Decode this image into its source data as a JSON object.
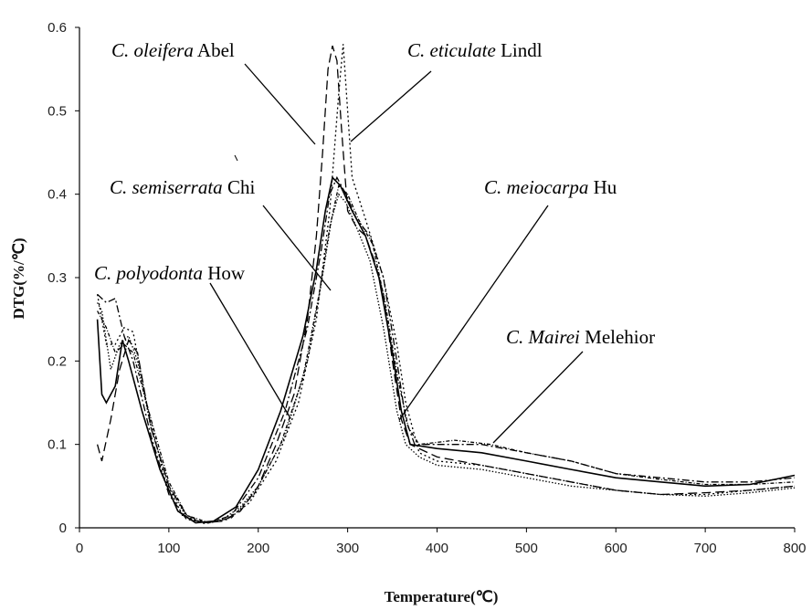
{
  "chart_data": {
    "type": "line",
    "title": "",
    "xlabel": "Temperature(℃)",
    "ylabel": "DTG(%/℃)",
    "xlim": [
      0,
      800
    ],
    "ylim": [
      0,
      0.6
    ],
    "x_ticks": [
      "0",
      "100",
      "200",
      "300",
      "400",
      "500",
      "600",
      "700",
      "800"
    ],
    "y_ticks": [
      "0",
      "0.1",
      "0.2",
      "0.3",
      "0.4",
      "0.5",
      "0.6"
    ],
    "grid": false,
    "legend": "none",
    "series": [
      {
        "name": "C. oleifera Abel",
        "style": "dashed",
        "points": [
          [
            20,
            0.1
          ],
          [
            25,
            0.08
          ],
          [
            35,
            0.13
          ],
          [
            45,
            0.19
          ],
          [
            55,
            0.225
          ],
          [
            65,
            0.21
          ],
          [
            80,
            0.12
          ],
          [
            100,
            0.05
          ],
          [
            120,
            0.015
          ],
          [
            140,
            0.006
          ],
          [
            160,
            0.008
          ],
          [
            180,
            0.02
          ],
          [
            200,
            0.05
          ],
          [
            220,
            0.1
          ],
          [
            240,
            0.16
          ],
          [
            255,
            0.25
          ],
          [
            265,
            0.35
          ],
          [
            272,
            0.45
          ],
          [
            278,
            0.55
          ],
          [
            283,
            0.578
          ],
          [
            288,
            0.56
          ],
          [
            293,
            0.48
          ],
          [
            300,
            0.38
          ],
          [
            310,
            0.36
          ],
          [
            320,
            0.35
          ],
          [
            330,
            0.32
          ],
          [
            340,
            0.28
          ],
          [
            350,
            0.2
          ],
          [
            360,
            0.13
          ],
          [
            370,
            0.1
          ],
          [
            400,
            0.085
          ],
          [
            450,
            0.075
          ],
          [
            500,
            0.065
          ],
          [
            550,
            0.055
          ],
          [
            600,
            0.045
          ],
          [
            650,
            0.04
          ],
          [
            700,
            0.042
          ],
          [
            750,
            0.045
          ],
          [
            800,
            0.05
          ]
        ]
      },
      {
        "name": "C. eticulate Lindl",
        "style": "dotted",
        "points": [
          [
            20,
            0.28
          ],
          [
            25,
            0.25
          ],
          [
            30,
            0.22
          ],
          [
            40,
            0.22
          ],
          [
            50,
            0.24
          ],
          [
            60,
            0.235
          ],
          [
            75,
            0.15
          ],
          [
            95,
            0.06
          ],
          [
            115,
            0.015
          ],
          [
            140,
            0.005
          ],
          [
            165,
            0.01
          ],
          [
            190,
            0.03
          ],
          [
            220,
            0.08
          ],
          [
            245,
            0.15
          ],
          [
            265,
            0.25
          ],
          [
            280,
            0.38
          ],
          [
            290,
            0.52
          ],
          [
            295,
            0.58
          ],
          [
            300,
            0.5
          ],
          [
            305,
            0.42
          ],
          [
            320,
            0.37
          ],
          [
            340,
            0.3
          ],
          [
            355,
            0.22
          ],
          [
            365,
            0.15
          ],
          [
            380,
            0.09
          ],
          [
            400,
            0.08
          ],
          [
            450,
            0.075
          ],
          [
            500,
            0.065
          ],
          [
            550,
            0.055
          ],
          [
            600,
            0.045
          ],
          [
            650,
            0.04
          ],
          [
            700,
            0.04
          ],
          [
            750,
            0.045
          ],
          [
            800,
            0.05
          ]
        ]
      },
      {
        "name": "C. semiserrata Chi",
        "style": "dash-dot",
        "points": [
          [
            20,
            0.28
          ],
          [
            30,
            0.27
          ],
          [
            40,
            0.275
          ],
          [
            50,
            0.23
          ],
          [
            60,
            0.2
          ],
          [
            80,
            0.11
          ],
          [
            100,
            0.04
          ],
          [
            120,
            0.01
          ],
          [
            145,
            0.006
          ],
          [
            170,
            0.015
          ],
          [
            200,
            0.06
          ],
          [
            230,
            0.14
          ],
          [
            255,
            0.24
          ],
          [
            270,
            0.33
          ],
          [
            280,
            0.4
          ],
          [
            288,
            0.42
          ],
          [
            298,
            0.4
          ],
          [
            310,
            0.37
          ],
          [
            325,
            0.35
          ],
          [
            340,
            0.3
          ],
          [
            355,
            0.2
          ],
          [
            365,
            0.13
          ],
          [
            375,
            0.1
          ],
          [
            400,
            0.1
          ],
          [
            450,
            0.1
          ],
          [
            500,
            0.09
          ],
          [
            550,
            0.08
          ],
          [
            600,
            0.065
          ],
          [
            650,
            0.06
          ],
          [
            700,
            0.055
          ],
          [
            750,
            0.055
          ],
          [
            800,
            0.06
          ]
        ]
      },
      {
        "name": "C. polyodonta How",
        "style": "solid",
        "points": [
          [
            20,
            0.25
          ],
          [
            25,
            0.16
          ],
          [
            30,
            0.15
          ],
          [
            40,
            0.17
          ],
          [
            48,
            0.225
          ],
          [
            55,
            0.2
          ],
          [
            70,
            0.14
          ],
          [
            90,
            0.07
          ],
          [
            110,
            0.02
          ],
          [
            130,
            0.006
          ],
          [
            150,
            0.008
          ],
          [
            175,
            0.025
          ],
          [
            200,
            0.07
          ],
          [
            225,
            0.14
          ],
          [
            250,
            0.23
          ],
          [
            265,
            0.31
          ],
          [
            275,
            0.38
          ],
          [
            283,
            0.42
          ],
          [
            292,
            0.41
          ],
          [
            305,
            0.38
          ],
          [
            320,
            0.35
          ],
          [
            335,
            0.3
          ],
          [
            350,
            0.21
          ],
          [
            360,
            0.14
          ],
          [
            370,
            0.1
          ],
          [
            400,
            0.095
          ],
          [
            450,
            0.09
          ],
          [
            500,
            0.08
          ],
          [
            550,
            0.07
          ],
          [
            600,
            0.06
          ],
          [
            650,
            0.055
          ],
          [
            700,
            0.05
          ],
          [
            750,
            0.052
          ],
          [
            800,
            0.063
          ]
        ]
      },
      {
        "name": "C. meiocarpa Hu",
        "style": "dotted-fine",
        "points": [
          [
            20,
            0.27
          ],
          [
            25,
            0.26
          ],
          [
            35,
            0.19
          ],
          [
            45,
            0.22
          ],
          [
            55,
            0.23
          ],
          [
            65,
            0.2
          ],
          [
            80,
            0.12
          ],
          [
            100,
            0.05
          ],
          [
            120,
            0.012
          ],
          [
            140,
            0.006
          ],
          [
            160,
            0.01
          ],
          [
            180,
            0.025
          ],
          [
            200,
            0.05
          ],
          [
            230,
            0.11
          ],
          [
            255,
            0.2
          ],
          [
            270,
            0.29
          ],
          [
            282,
            0.37
          ],
          [
            290,
            0.4
          ],
          [
            298,
            0.39
          ],
          [
            310,
            0.36
          ],
          [
            325,
            0.32
          ],
          [
            340,
            0.24
          ],
          [
            355,
            0.14
          ],
          [
            365,
            0.1
          ],
          [
            380,
            0.085
          ],
          [
            400,
            0.075
          ],
          [
            450,
            0.07
          ],
          [
            500,
            0.06
          ],
          [
            550,
            0.05
          ],
          [
            600,
            0.045
          ],
          [
            650,
            0.04
          ],
          [
            700,
            0.038
          ],
          [
            750,
            0.042
          ],
          [
            800,
            0.048
          ]
        ]
      },
      {
        "name": "C. Mairei Melehior",
        "style": "dense-dotted",
        "points": [
          [
            20,
            0.26
          ],
          [
            30,
            0.24
          ],
          [
            40,
            0.21
          ],
          [
            50,
            0.22
          ],
          [
            60,
            0.21
          ],
          [
            80,
            0.13
          ],
          [
            100,
            0.055
          ],
          [
            120,
            0.015
          ],
          [
            145,
            0.006
          ],
          [
            170,
            0.012
          ],
          [
            195,
            0.04
          ],
          [
            225,
            0.1
          ],
          [
            250,
            0.18
          ],
          [
            268,
            0.28
          ],
          [
            280,
            0.36
          ],
          [
            290,
            0.41
          ],
          [
            300,
            0.4
          ],
          [
            312,
            0.37
          ],
          [
            328,
            0.34
          ],
          [
            342,
            0.27
          ],
          [
            356,
            0.18
          ],
          [
            368,
            0.12
          ],
          [
            380,
            0.1
          ],
          [
            420,
            0.105
          ],
          [
            460,
            0.1
          ],
          [
            500,
            0.09
          ],
          [
            550,
            0.08
          ],
          [
            600,
            0.065
          ],
          [
            650,
            0.058
          ],
          [
            700,
            0.052
          ],
          [
            750,
            0.052
          ],
          [
            800,
            0.055
          ]
        ]
      }
    ],
    "annotations": [
      {
        "italic": "C. oleifera",
        "rest": " Abel"
      },
      {
        "italic": "C. eticulate",
        "rest": " Lindl"
      },
      {
        "italic": "C. semiserrata",
        "rest": " Chi"
      },
      {
        "italic": "C. meiocarpa",
        "rest": " Hu"
      },
      {
        "italic": "C. polyodonta",
        "rest": " How"
      },
      {
        "italic": "C. Mairei",
        "rest": " Melehior"
      }
    ]
  }
}
